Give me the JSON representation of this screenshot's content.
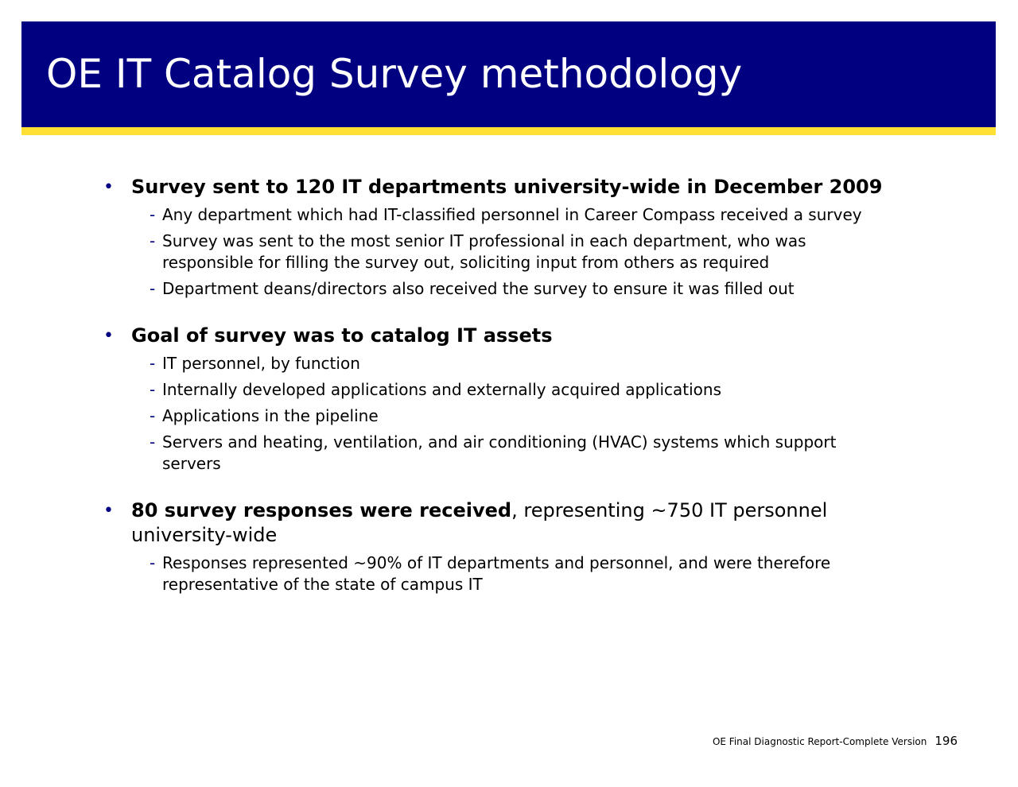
{
  "title": "OE IT Catalog Survey methodology",
  "colors": {
    "title_bar": "#000080",
    "accent_line": "#ffe033",
    "bullet_marker": "#000080"
  },
  "sections": [
    {
      "bold": "Survey sent to 120 IT departments university-wide in December 2009",
      "rest": "",
      "subs": [
        "Any department which had IT-classified personnel in Career Compass received a survey",
        "Survey was sent to the most senior IT professional in each department, who was responsible for filling the survey out, soliciting input from others as required",
        "Department deans/directors also received the survey to ensure it was filled out"
      ]
    },
    {
      "bold": "Goal of survey was to catalog IT assets",
      "rest": "",
      "subs": [
        "IT personnel, by function",
        "Internally developed applications and externally acquired applications",
        "Applications in the pipeline",
        "Servers and heating, ventilation, and air conditioning (HVAC) systems which support servers"
      ]
    },
    {
      "bold": "80 survey responses were received",
      "rest": ", representing ~750 IT personnel university-wide",
      "subs": [
        "Responses represented ~90% of IT departments and personnel, and were therefore representative of the state of campus IT"
      ]
    }
  ],
  "markers": {
    "bullet": "•",
    "sub": "-"
  },
  "footer": {
    "label": "OE Final Diagnostic Report-Complete Version",
    "page": "196"
  }
}
